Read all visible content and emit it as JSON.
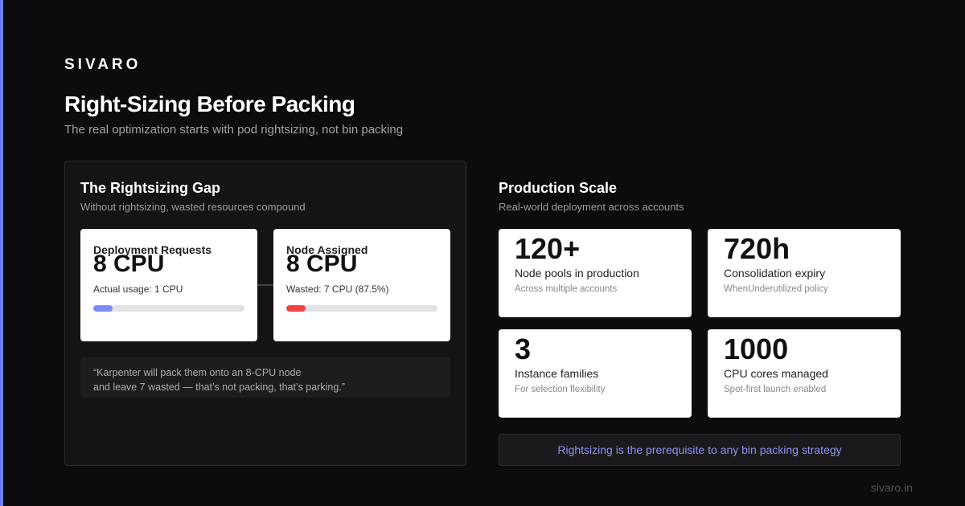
{
  "brand": "SIVARO",
  "header": {
    "title": "Right-Sizing Before Packing",
    "subtitle": "The real optimization starts with pod rightsizing, not bin packing"
  },
  "left_panel": {
    "title": "The Rightsizing Gap",
    "subtitle": "Without rightsizing, wasted resources compound",
    "cards": [
      {
        "label": "Deployment Requests",
        "value": "8 CPU",
        "detail": "Actual usage: 1 CPU",
        "bar_fill_percent": 12.5,
        "bar_color": "#7b8cf7"
      },
      {
        "label": "Node Assigned",
        "value": "8 CPU",
        "detail": "Wasted: 7 CPU (87.5%)",
        "bar_fill_percent": 12.5,
        "bar_color": "#ef4444"
      }
    ],
    "quote": [
      "“Karpenter will pack them onto an 8-CPU node",
      "and leave 7 wasted — that’s not packing, that’s parking.”"
    ]
  },
  "right_panel": {
    "title": "Production Scale",
    "subtitle": "Real-world deployment across accounts",
    "stats": [
      {
        "value": "120+",
        "label": "Node pools in production",
        "note": "Across multiple accounts"
      },
      {
        "value": "720h",
        "label": "Consolidation expiry",
        "note": "WhenUnderutilized policy"
      },
      {
        "value": 3,
        "label": "Instance families",
        "note": "For selection flexibility"
      },
      {
        "value": 1000,
        "label": "CPU cores managed",
        "note": "Spot-first launch enabled"
      }
    ],
    "callout": "Rightsizing is the prerequisite to any bin packing strategy"
  },
  "footer": "sivaro.in"
}
